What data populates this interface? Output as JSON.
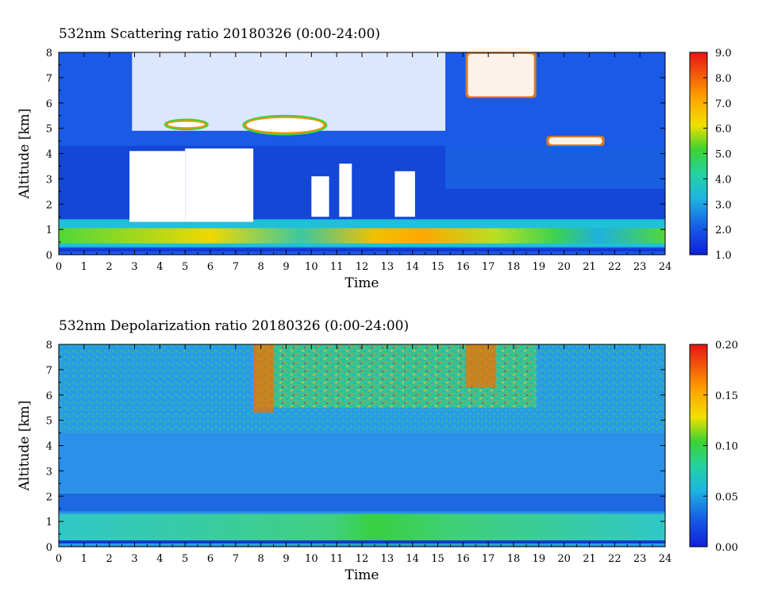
{
  "chart_data": [
    {
      "type": "heatmap",
      "title": "532nm Scattering ratio  20180326 (0:00-24:00)",
      "xlabel": "Time",
      "ylabel": "Altitude [km]",
      "xlim": [
        0,
        24
      ],
      "ylim": [
        0,
        8
      ],
      "x_ticks": [
        "0",
        "1",
        "2",
        "3",
        "4",
        "5",
        "6",
        "7",
        "8",
        "9",
        "10",
        "11",
        "12",
        "13",
        "14",
        "15",
        "16",
        "17",
        "18",
        "19",
        "20",
        "21",
        "22",
        "23",
        "24"
      ],
      "y_ticks": [
        "0",
        "1",
        "2",
        "3",
        "4",
        "5",
        "6",
        "7",
        "8"
      ],
      "colorbar": {
        "range": [
          1.0,
          9.0
        ],
        "ticks": [
          "1.0",
          "2.0",
          "3.0",
          "4.0",
          "5.0",
          "6.0",
          "7.0",
          "8.0",
          "9.0"
        ]
      },
      "colors": {
        "background": "#1a5ae6",
        "low": "#1238d0",
        "mid": "#1ec8c8",
        "high_green": "#32d250",
        "yellow": "#f0e000",
        "orange": "#ff8c00",
        "red": "#e62814",
        "saturated": "#ffffff"
      },
      "features": {
        "boundary_layer": {
          "x_range": [
            0,
            24
          ],
          "altitude_km": [
            0.3,
            1.4
          ],
          "max_value": 6.5,
          "peak_time": 12.5
        },
        "low_clouds_saturated": [
          {
            "x_range": [
              2.8,
              5.0
            ],
            "altitude_km": [
              1.3,
              4.1
            ]
          },
          {
            "x_range": [
              5.0,
              7.7
            ],
            "altitude_km": [
              1.3,
              4.2
            ]
          },
          {
            "x_range": [
              10.0,
              10.7
            ],
            "altitude_km": [
              1.5,
              3.1
            ]
          },
          {
            "x_range": [
              11.1,
              11.6
            ],
            "altitude_km": [
              1.5,
              3.6
            ]
          },
          {
            "x_range": [
              13.3,
              14.1
            ],
            "altitude_km": [
              1.5,
              3.3
            ]
          }
        ],
        "mid_clouds_saturated": [
          {
            "x_range": [
              2.9,
              15.3
            ],
            "altitude_km": [
              4.9,
              8.0
            ]
          }
        ],
        "high_clouds": [
          {
            "x_range": [
              16.1,
              18.9
            ],
            "altitude_km": [
              6.2,
              8.0
            ]
          },
          {
            "x_range": [
              19.3,
              21.6
            ],
            "altitude_km": [
              4.3,
              4.7
            ]
          }
        ]
      }
    },
    {
      "type": "heatmap",
      "title": "532nm Depolarization ratio  20180326 (0:00-24:00)",
      "xlabel": "Time",
      "ylabel": "Altitude [km]",
      "xlim": [
        0,
        24
      ],
      "ylim": [
        0,
        8
      ],
      "x_ticks": [
        "0",
        "1",
        "2",
        "3",
        "4",
        "5",
        "6",
        "7",
        "8",
        "9",
        "10",
        "11",
        "12",
        "13",
        "14",
        "15",
        "16",
        "17",
        "18",
        "19",
        "20",
        "21",
        "22",
        "23",
        "24"
      ],
      "y_ticks": [
        "0",
        "1",
        "2",
        "3",
        "4",
        "5",
        "6",
        "7",
        "8"
      ],
      "colorbar": {
        "range": [
          0.0,
          0.2
        ],
        "ticks": [
          "0.00",
          "0.05",
          "0.10",
          "0.15",
          "0.20"
        ]
      },
      "colors": {
        "background": "#2a90e8",
        "low": "#1650d8",
        "mid": "#32c8c8",
        "green": "#38d048",
        "yellow": "#f0e000",
        "red": "#e62814"
      },
      "features": {
        "boundary_layer": {
          "x_range": [
            0,
            24
          ],
          "altitude_km": [
            0.1,
            1.3
          ],
          "max_value": 0.09,
          "peak_time": 12.0
        },
        "ice_cloud_band": {
          "x_range": [
            7.8,
            18.9
          ],
          "altitude_km": [
            5.5,
            8.0
          ],
          "max_value": 0.2
        },
        "high_depol_columns": [
          {
            "x_range": [
              7.7,
              8.5
            ],
            "altitude_km": [
              5.3,
              8.0
            ]
          },
          {
            "x_range": [
              16.1,
              17.3
            ],
            "altitude_km": [
              6.3,
              8.0
            ]
          }
        ]
      }
    }
  ]
}
